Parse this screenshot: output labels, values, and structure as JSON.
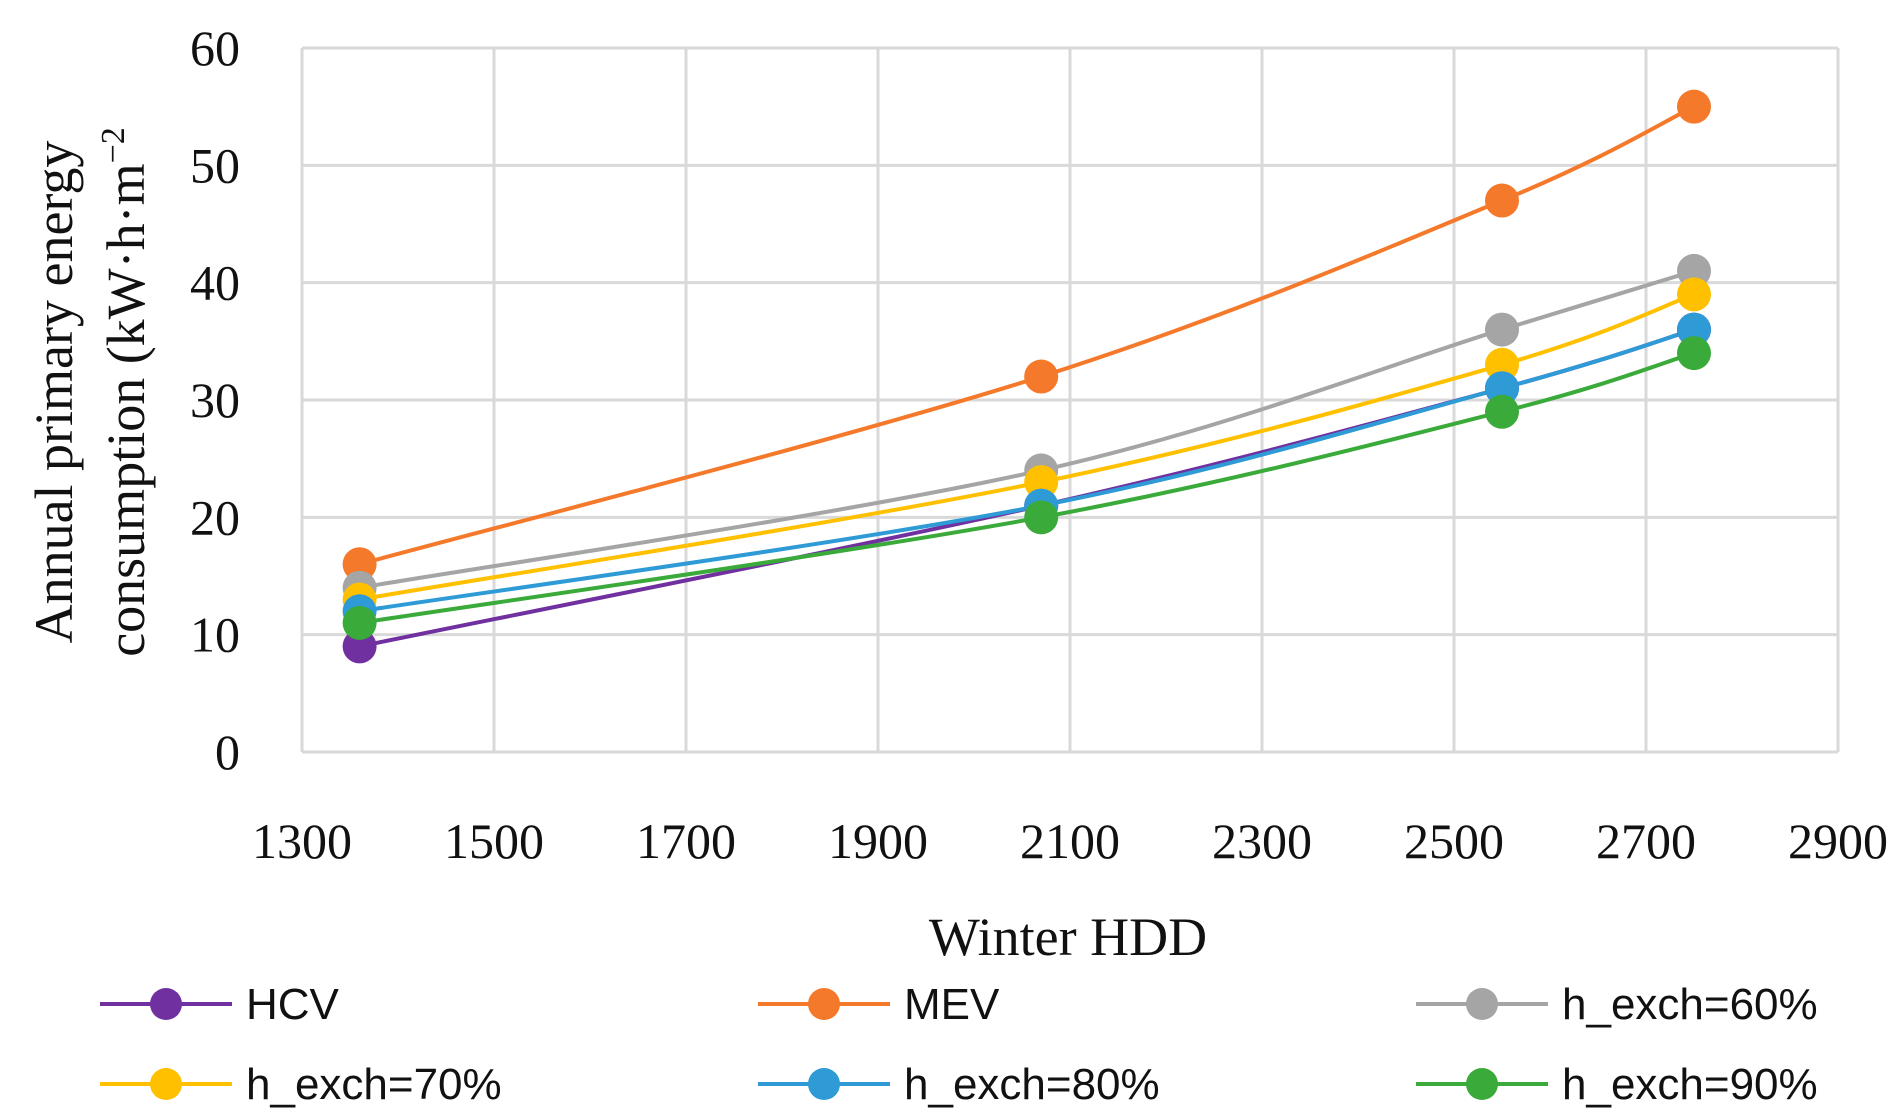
{
  "chart_data": {
    "type": "line",
    "title": "",
    "xlabel": "Winter HDD",
    "ylabel_line1": "Annual primary energy",
    "ylabel_line2": "consumption (kW·h·m",
    "ylabel_sup": "−2",
    "xlim": [
      1300,
      2900
    ],
    "ylim": [
      0,
      60
    ],
    "xticks": [
      1300,
      1500,
      1700,
      1900,
      2100,
      2300,
      2500,
      2700,
      2900
    ],
    "yticks": [
      0,
      10,
      20,
      30,
      40,
      50,
      60
    ],
    "grid": true,
    "smooth": true,
    "legend_position": "bottom",
    "x": [
      1360,
      2070,
      2550,
      2750
    ],
    "series": [
      {
        "name": "HCV",
        "color": "#7030A0",
        "values": [
          9,
          21,
          31,
          36
        ]
      },
      {
        "name": "MEV",
        "color": "#F5792A",
        "values": [
          16,
          32,
          47,
          55
        ]
      },
      {
        "name": "h_exch=60%",
        "color": "#A5A5A5",
        "values": [
          14,
          24,
          36,
          41
        ]
      },
      {
        "name": "h_exch=70%",
        "color": "#FFC000",
        "values": [
          13,
          23,
          33,
          39
        ]
      },
      {
        "name": "h_exch=80%",
        "color": "#2E9BD6",
        "values": [
          12,
          21,
          31,
          36
        ]
      },
      {
        "name": "h_exch=90%",
        "color": "#3AAA3A",
        "values": [
          11,
          20,
          29,
          34
        ]
      }
    ]
  }
}
